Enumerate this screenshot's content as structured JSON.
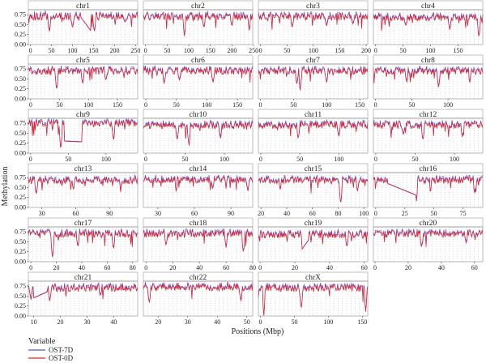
{
  "figure": {
    "ylabel": "Methylation",
    "xlabel": "Positions (Mbp)",
    "legend_title": "Variable",
    "legend_position": "bottom-left",
    "grid": "dotted vertical"
  },
  "chart_data": {
    "type": "line",
    "x_unit": "Mbp",
    "ylim": [
      0,
      0.875
    ],
    "yticks": [
      0.0,
      0.25,
      0.5,
      0.75
    ],
    "ytick_labels": [
      "0.00",
      "0.25",
      "0.50",
      "0.75"
    ],
    "series": [
      {
        "name": "OST-7D",
        "color": "#4f5bd5"
      },
      {
        "name": "OST-0D",
        "color": "#e8202a"
      }
    ],
    "panels": [
      {
        "name": "chr1",
        "xlim": [
          -5,
          255
        ],
        "xticks": [
          0,
          50,
          100,
          150,
          200,
          250
        ],
        "base": 0.7,
        "dips": [
          {
            "x": 45,
            "y": 0.3
          },
          {
            "x": 100,
            "y": 0.4
          },
          {
            "x": 152,
            "y": 0.3
          },
          {
            "x": 225,
            "y": 0.55
          }
        ],
        "gaps": [
          {
            "from": 120,
            "to": 143,
            "y0": 0.68,
            "y1": 0.35
          }
        ]
      },
      {
        "name": "chr2",
        "xlim": [
          -5,
          248
        ],
        "xticks": [
          0,
          50,
          100,
          150,
          200,
          250
        ],
        "base": 0.7,
        "dips": [
          {
            "x": 90,
            "y": 0.2
          },
          {
            "x": 135,
            "y": 0.4
          },
          {
            "x": 200,
            "y": 0.45
          },
          {
            "x": 240,
            "y": 0.35
          }
        ]
      },
      {
        "name": "chr3",
        "xlim": [
          -4,
          203
        ],
        "xticks": [
          0,
          50,
          100,
          150,
          200
        ],
        "base": 0.7,
        "dips": [
          {
            "x": 60,
            "y": 0.4
          },
          {
            "x": 125,
            "y": 0.45
          },
          {
            "x": 175,
            "y": 0.5
          }
        ]
      },
      {
        "name": "chr4",
        "xlim": [
          -4,
          195
        ],
        "xticks": [
          0,
          50,
          100,
          150
        ],
        "base": 0.68,
        "dips": [
          {
            "x": 55,
            "y": 0.45
          },
          {
            "x": 135,
            "y": 0.35
          },
          {
            "x": 188,
            "y": 0.15
          }
        ]
      },
      {
        "name": "chr5",
        "xlim": [
          -4,
          185
        ],
        "xticks": [
          0,
          50,
          100,
          150
        ],
        "base": 0.7,
        "dips": [
          {
            "x": 45,
            "y": 0.2
          },
          {
            "x": 90,
            "y": 0.35
          },
          {
            "x": 130,
            "y": 0.45
          }
        ]
      },
      {
        "name": "chr6",
        "xlim": [
          -4,
          175
        ],
        "xticks": [
          0,
          50,
          100,
          150
        ],
        "base": 0.7,
        "dips": [
          {
            "x": 30,
            "y": 0.35
          },
          {
            "x": 55,
            "y": 0.45
          },
          {
            "x": 110,
            "y": 0.4
          }
        ]
      },
      {
        "name": "chr7",
        "xlim": [
          -3,
          162
        ],
        "xticks": [
          0,
          50,
          100,
          150
        ],
        "base": 0.7,
        "dips": [
          {
            "x": 55,
            "y": 0.35
          },
          {
            "x": 60,
            "y": 0.2
          },
          {
            "x": 100,
            "y": 0.4
          }
        ]
      },
      {
        "name": "chr8",
        "xlim": [
          -3,
          148
        ],
        "xticks": [
          0,
          50,
          100
        ],
        "base": 0.7,
        "dips": [
          {
            "x": 43,
            "y": 0.4
          },
          {
            "x": 87,
            "y": 0.25
          },
          {
            "x": 130,
            "y": 0.4
          }
        ]
      },
      {
        "name": "chr9",
        "xlim": [
          -3,
          142
        ],
        "xticks": [
          0,
          50,
          100
        ],
        "base": 0.75,
        "dips": [
          {
            "x": 40,
            "y": 0.05
          },
          {
            "x": 110,
            "y": 0.3
          }
        ],
        "gaps": [
          {
            "from": 45,
            "to": 68,
            "y0": 0.3,
            "y1": 0.28
          }
        ]
      },
      {
        "name": "chr10",
        "xlim": [
          -3,
          136
        ],
        "xticks": [
          0,
          50,
          100
        ],
        "base": 0.7,
        "dips": [
          {
            "x": 40,
            "y": 0.3
          },
          {
            "x": 55,
            "y": 0.15
          },
          {
            "x": 95,
            "y": 0.35
          }
        ]
      },
      {
        "name": "chr11",
        "xlim": [
          -3,
          137
        ],
        "xticks": [
          0,
          50,
          100
        ],
        "base": 0.7,
        "dips": [
          {
            "x": 48,
            "y": 0.35
          },
          {
            "x": 100,
            "y": 0.4
          }
        ]
      },
      {
        "name": "chr12",
        "xlim": [
          -3,
          136
        ],
        "xticks": [
          0,
          50,
          100
        ],
        "base": 0.7,
        "dips": [
          {
            "x": 35,
            "y": 0.45
          },
          {
            "x": 60,
            "y": 0.3
          },
          {
            "x": 110,
            "y": 0.4
          }
        ]
      },
      {
        "name": "chr13",
        "xlim": [
          18,
          115
        ],
        "xticks": [
          30,
          60,
          90
        ],
        "base": 0.68,
        "dips": [
          {
            "x": 25,
            "y": 0.3
          },
          {
            "x": 58,
            "y": 0.45
          },
          {
            "x": 100,
            "y": 0.5
          }
        ]
      },
      {
        "name": "chr14",
        "xlim": [
          18,
          108
        ],
        "xticks": [
          30,
          60,
          90
        ],
        "base": 0.7,
        "dips": [
          {
            "x": 45,
            "y": 0.4
          },
          {
            "x": 75,
            "y": 0.45
          },
          {
            "x": 104,
            "y": 0.4
          }
        ]
      },
      {
        "name": "chr15",
        "xlim": [
          18,
          103
        ],
        "xticks": [
          20,
          40,
          60,
          80,
          100
        ],
        "base": 0.68,
        "dips": [
          {
            "x": 35,
            "y": 0.45
          },
          {
            "x": 82,
            "y": 0.05
          },
          {
            "x": 95,
            "y": 0.4
          }
        ]
      },
      {
        "name": "chr16",
        "xlim": [
          -2,
          92
        ],
        "xticks": [
          0,
          25,
          50,
          75
        ],
        "base": 0.68,
        "dips": [
          {
            "x": 35,
            "y": 0.15
          },
          {
            "x": 85,
            "y": 0.35
          }
        ],
        "gaps": [
          {
            "from": 10,
            "to": 35,
            "y0": 0.6,
            "y1": 0.3
          }
        ]
      },
      {
        "name": "chr17",
        "xlim": [
          -2,
          84
        ],
        "xticks": [
          0,
          20,
          40,
          60,
          80
        ],
        "base": 0.7,
        "dips": [
          {
            "x": 17,
            "y": 0.05
          },
          {
            "x": 37,
            "y": 0.35
          },
          {
            "x": 65,
            "y": 0.3
          }
        ]
      },
      {
        "name": "chr18",
        "xlim": [
          -2,
          80
        ],
        "xticks": [
          0,
          20,
          40,
          60,
          80
        ],
        "base": 0.7,
        "dips": [
          {
            "x": 15,
            "y": 0.4
          },
          {
            "x": 60,
            "y": 0.35
          },
          {
            "x": 73,
            "y": 0.2
          }
        ]
      },
      {
        "name": "chr19",
        "xlim": [
          -1,
          62
        ],
        "xticks": [
          0,
          20,
          40,
          60
        ],
        "base": 0.68,
        "dips": [
          {
            "x": 25,
            "y": 0.3
          },
          {
            "x": 50,
            "y": 0.35
          }
        ],
        "gaps": [
          {
            "from": 24,
            "to": 28,
            "y0": 0.3,
            "y1": 0.55
          }
        ]
      },
      {
        "name": "chr20",
        "xlim": [
          -1,
          65
        ],
        "xticks": [
          0,
          20,
          40,
          60
        ],
        "base": 0.7,
        "dips": [
          {
            "x": 28,
            "y": 0.35
          },
          {
            "x": 55,
            "y": 0.45
          }
        ]
      },
      {
        "name": "chr21",
        "xlim": [
          8,
          49
        ],
        "xticks": [
          10,
          20,
          30,
          40
        ],
        "base": 0.7,
        "dips": [
          {
            "x": 9,
            "y": 0.4
          },
          {
            "x": 16,
            "y": 0.35
          },
          {
            "x": 35,
            "y": 0.5
          }
        ],
        "gaps": [
          {
            "from": 10,
            "to": 15,
            "y0": 0.45,
            "y1": 0.6
          }
        ]
      },
      {
        "name": "chr22",
        "xlim": [
          15,
          52
        ],
        "xticks": [
          20,
          30,
          40,
          50
        ],
        "base": 0.72,
        "dips": [
          {
            "x": 17,
            "y": 0.3
          },
          {
            "x": 48,
            "y": 0.35
          }
        ]
      },
      {
        "name": "chrX",
        "xlim": [
          -3,
          158
        ],
        "xticks": [
          0,
          50,
          100,
          150
        ],
        "base": 0.7,
        "dips": [
          {
            "x": 5,
            "y": 0.0
          },
          {
            "x": 60,
            "y": 0.15
          },
          {
            "x": 155,
            "y": 0.1
          }
        ]
      }
    ]
  }
}
